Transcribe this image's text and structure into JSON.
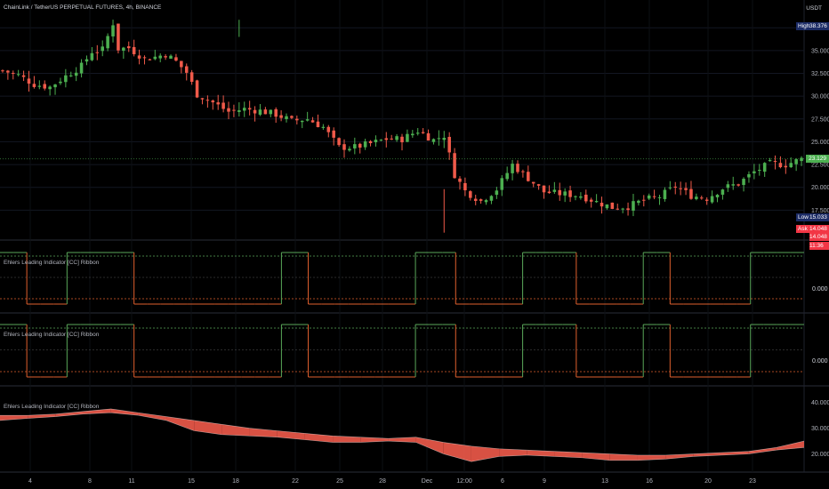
{
  "header": {
    "title": "ChainLink / TetherUS PERPETUAL FUTURES, 4h, BINANCE",
    "currency": "USDT"
  },
  "price_pane": {
    "high_label": "High",
    "high_value": "38.376",
    "low_label": "Low",
    "low_value": "15.033",
    "ask_label": "Ask",
    "ask_value": "14.048",
    "last_value": "23.129",
    "extra_values": [
      "14.048",
      "11:36"
    ],
    "y_ticks": [
      "37.500",
      "35.000",
      "32.500",
      "30.000",
      "27.500",
      "25.000",
      "22.500",
      "20.000",
      "17.500"
    ]
  },
  "osc_pane_1": {
    "title": "Ehlers Leading Indicator [CC] Ribbon",
    "tick": "0.000"
  },
  "osc_pane_2": {
    "title": "Ehlers Leading Indicator [CC] Ribbon",
    "tick": "0.000"
  },
  "ribbon_pane": {
    "title": "Ehlers Leading Indicator [CC] Ribbon",
    "y_ticks": [
      "40.000",
      "30.000",
      "20.000"
    ]
  },
  "x_axis": {
    "ticks": [
      "4",
      "8",
      "11",
      "15",
      "18",
      "22",
      "25",
      "28",
      "Dec",
      "12:00",
      "6",
      "9",
      "13",
      "16",
      "20",
      "23"
    ]
  },
  "colors": {
    "up": "#4caf50",
    "down": "#f05a4a",
    "high_badge": "#1c2c66",
    "low_badge": "#1c2c66",
    "ask_badge": "#f23645",
    "last_badge": "#4caf50",
    "osc_up": "#5aa85a",
    "osc_down": "#e0602e"
  },
  "chart_data": [
    {
      "type": "candlestick",
      "title": "ChainLink / TetherUS PERPETUAL FUTURES, 4h, BINANCE",
      "ylim": [
        15.0,
        38.4
      ],
      "y_ticks": [
        37.5,
        35.0,
        32.5,
        30.0,
        27.5,
        25.0,
        22.5,
        20.0,
        17.5
      ],
      "x_ticks": [
        "4",
        "8",
        "11",
        "15",
        "18",
        "22",
        "25",
        "28",
        "Dec",
        "12:00",
        "6",
        "9",
        "13",
        "16",
        "20",
        "23"
      ],
      "close_path": [
        [
          0,
          32.8
        ],
        [
          3,
          32.3
        ],
        [
          6,
          31.3
        ],
        [
          9,
          31.0
        ],
        [
          12,
          32.2
        ],
        [
          15,
          33.3
        ],
        [
          17,
          34.9
        ],
        [
          19,
          35.1
        ],
        [
          21,
          38.0
        ],
        [
          22,
          35.2
        ],
        [
          24,
          35.3
        ],
        [
          27,
          34.1
        ],
        [
          29,
          34.3
        ],
        [
          31,
          34.6
        ],
        [
          33,
          33.8
        ],
        [
          35,
          32.6
        ],
        [
          37,
          30.2
        ],
        [
          40,
          29.3
        ],
        [
          43,
          28.3
        ],
        [
          46,
          28.6
        ],
        [
          49,
          28.4
        ],
        [
          52,
          28.0
        ],
        [
          55,
          27.3
        ],
        [
          58,
          27.5
        ],
        [
          61,
          26.6
        ],
        [
          64,
          24.4
        ],
        [
          67,
          24.4
        ],
        [
          70,
          24.8
        ],
        [
          73,
          25.3
        ],
        [
          76,
          25.3
        ],
        [
          79,
          26.2
        ],
        [
          82,
          25.2
        ],
        [
          84,
          25.7
        ],
        [
          86,
          21.4
        ],
        [
          88,
          19.6
        ],
        [
          91,
          18.5
        ],
        [
          94,
          19.8
        ],
        [
          97,
          22.5
        ],
        [
          100,
          21.0
        ],
        [
          103,
          19.5
        ],
        [
          106,
          19.3
        ],
        [
          110,
          19.1
        ],
        [
          113,
          18.4
        ],
        [
          116,
          17.8
        ],
        [
          119,
          17.9
        ],
        [
          122,
          18.6
        ],
        [
          125,
          19.0
        ],
        [
          128,
          20.1
        ],
        [
          131,
          19.1
        ],
        [
          134,
          18.8
        ],
        [
          137,
          19.9
        ],
        [
          140,
          20.4
        ],
        [
          143,
          21.7
        ],
        [
          146,
          22.6
        ],
        [
          149,
          22.5
        ],
        [
          152,
          23.1
        ]
      ],
      "last": 23.129,
      "high": 38.376,
      "low": 15.033
    },
    {
      "type": "line",
      "title": "Ehlers Leading Indicator [CC] Ribbon",
      "series": [
        {
          "values": [
            1,
            1,
            0,
            0,
            0,
            1,
            1,
            1,
            1,
            1,
            0,
            0,
            0,
            0,
            0,
            0,
            0,
            0,
            0,
            0,
            0,
            1,
            1,
            0,
            0,
            0,
            0,
            0,
            0,
            0,
            0,
            1,
            1,
            1,
            0,
            0,
            0,
            0,
            0,
            1,
            1,
            1,
            1,
            0,
            0,
            0,
            0,
            0,
            1,
            1,
            0,
            0,
            0,
            0,
            0,
            0,
            1,
            1,
            1,
            1
          ]
        }
      ],
      "y_ticks": [
        0.0
      ]
    },
    {
      "type": "line",
      "title": "Ehlers Leading Indicator [CC] Ribbon",
      "series": [
        {
          "values": [
            1,
            1,
            0,
            0,
            0,
            1,
            1,
            1,
            1,
            1,
            0,
            0,
            0,
            0,
            0,
            0,
            0,
            0,
            0,
            0,
            0,
            1,
            1,
            0,
            0,
            0,
            0,
            0,
            0,
            0,
            0,
            1,
            1,
            1,
            0,
            0,
            0,
            0,
            0,
            1,
            1,
            1,
            1,
            0,
            0,
            0,
            0,
            0,
            1,
            1,
            0,
            0,
            0,
            0,
            0,
            0,
            1,
            1,
            1,
            1
          ]
        }
      ],
      "y_ticks": [
        0.0
      ]
    },
    {
      "type": "area",
      "title": "Ehlers Leading Indicator [CC] Ribbon",
      "ylim": [
        15.0,
        43.0
      ],
      "y_ticks": [
        40.0,
        30.0,
        20.0
      ],
      "series": [
        {
          "values": [
            33.0,
            33.8,
            34.5,
            35.5,
            36.0,
            35.0,
            33.0,
            29.0,
            27.5,
            27.0,
            26.5,
            25.5,
            24.5,
            24.5,
            25.0,
            24.5,
            20.0,
            17.0,
            19.0,
            19.5,
            19.0,
            18.5,
            17.5,
            17.5,
            18.0,
            19.0,
            19.5,
            20.0,
            21.5,
            22.5
          ]
        },
        {
          "values": [
            35.0,
            35.0,
            35.5,
            36.5,
            37.5,
            36.0,
            34.5,
            33.0,
            31.5,
            30.0,
            29.0,
            28.0,
            27.0,
            26.5,
            26.0,
            26.5,
            24.5,
            23.0,
            22.0,
            21.5,
            21.0,
            20.5,
            20.0,
            19.5,
            19.5,
            20.0,
            20.5,
            21.0,
            22.5,
            25.0
          ]
        }
      ]
    }
  ]
}
